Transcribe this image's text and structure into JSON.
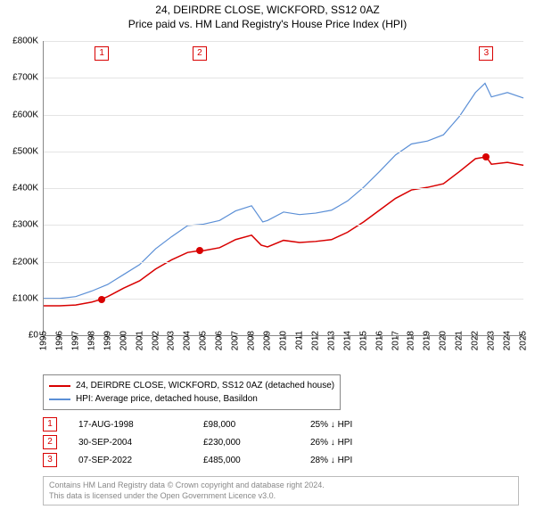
{
  "title": {
    "line1": "24, DEIRDRE CLOSE, WICKFORD, SS12 0AZ",
    "line2": "Price paid vs. HM Land Registry's House Price Index (HPI)",
    "fontsize": 12
  },
  "chart": {
    "type": "line",
    "background_color": "#ffffff",
    "grid_color": "#e4e4e4",
    "axis_color": "#888888",
    "ylim": [
      0,
      800000
    ],
    "ytick_step": 100000,
    "yticklabels": [
      "£0",
      "£100K",
      "£200K",
      "£300K",
      "£400K",
      "£500K",
      "£600K",
      "£700K",
      "£800K"
    ],
    "xlim": [
      1995,
      2025
    ],
    "xticks": [
      1995,
      1996,
      1997,
      1998,
      1999,
      2000,
      2001,
      2002,
      2003,
      2004,
      2005,
      2006,
      2007,
      2008,
      2009,
      2010,
      2011,
      2012,
      2013,
      2014,
      2015,
      2016,
      2017,
      2018,
      2019,
      2020,
      2021,
      2022,
      2023,
      2024,
      2025
    ],
    "series": {
      "price_paid": {
        "label": "24, DEIRDRE CLOSE, WICKFORD, SS12 0AZ (detached house)",
        "color": "#d80000",
        "line_width": 1.5,
        "data": [
          [
            1995,
            80000
          ],
          [
            1996,
            80000
          ],
          [
            1997,
            82000
          ],
          [
            1998,
            90000
          ],
          [
            1998.63,
            98000
          ],
          [
            1999,
            105000
          ],
          [
            2000,
            128000
          ],
          [
            2001,
            148000
          ],
          [
            2002,
            180000
          ],
          [
            2003,
            205000
          ],
          [
            2004,
            225000
          ],
          [
            2004.75,
            230000
          ],
          [
            2005,
            230000
          ],
          [
            2006,
            238000
          ],
          [
            2007,
            260000
          ],
          [
            2008,
            272000
          ],
          [
            2008.6,
            245000
          ],
          [
            2009,
            240000
          ],
          [
            2010,
            258000
          ],
          [
            2011,
            252000
          ],
          [
            2012,
            255000
          ],
          [
            2013,
            260000
          ],
          [
            2014,
            280000
          ],
          [
            2015,
            308000
          ],
          [
            2016,
            340000
          ],
          [
            2017,
            372000
          ],
          [
            2018,
            395000
          ],
          [
            2019,
            402000
          ],
          [
            2020,
            412000
          ],
          [
            2021,
            445000
          ],
          [
            2022,
            480000
          ],
          [
            2022.68,
            485000
          ],
          [
            2023,
            465000
          ],
          [
            2024,
            470000
          ],
          [
            2025,
            462000
          ]
        ]
      },
      "hpi": {
        "label": "HPI: Average price, detached house, Basildon",
        "color": "#5b8fd6",
        "line_width": 1.2,
        "data": [
          [
            1995,
            100000
          ],
          [
            1996,
            100000
          ],
          [
            1997,
            105000
          ],
          [
            1998,
            120000
          ],
          [
            1999,
            138000
          ],
          [
            2000,
            165000
          ],
          [
            2001,
            192000
          ],
          [
            2002,
            235000
          ],
          [
            2003,
            268000
          ],
          [
            2004,
            298000
          ],
          [
            2005,
            302000
          ],
          [
            2006,
            312000
          ],
          [
            2007,
            338000
          ],
          [
            2008,
            352000
          ],
          [
            2008.7,
            308000
          ],
          [
            2009,
            312000
          ],
          [
            2010,
            335000
          ],
          [
            2011,
            328000
          ],
          [
            2012,
            332000
          ],
          [
            2013,
            340000
          ],
          [
            2014,
            365000
          ],
          [
            2015,
            402000
          ],
          [
            2016,
            445000
          ],
          [
            2017,
            490000
          ],
          [
            2018,
            520000
          ],
          [
            2019,
            528000
          ],
          [
            2020,
            545000
          ],
          [
            2021,
            595000
          ],
          [
            2022,
            660000
          ],
          [
            2022.6,
            685000
          ],
          [
            2023,
            648000
          ],
          [
            2024,
            660000
          ],
          [
            2025,
            645000
          ]
        ]
      }
    },
    "sale_markers": [
      {
        "n": "1",
        "x": 1998.63,
        "y": 98000,
        "box_y_top": true
      },
      {
        "n": "2",
        "x": 2004.75,
        "y": 230000,
        "box_y_top": true
      },
      {
        "n": "3",
        "x": 2022.68,
        "y": 485000,
        "box_y_top": true
      }
    ],
    "marker_color": "#d80000",
    "marker_dot_radius": 4
  },
  "legend": {
    "items": [
      {
        "color": "#d80000",
        "label": "24, DEIRDRE CLOSE, WICKFORD, SS12 0AZ (detached house)"
      },
      {
        "color": "#5b8fd6",
        "label": "HPI: Average price, detached house, Basildon"
      }
    ]
  },
  "sales_table": {
    "rows": [
      {
        "n": "1",
        "date": "17-AUG-1998",
        "price": "£98,000",
        "delta": "25% ↓ HPI"
      },
      {
        "n": "2",
        "date": "30-SEP-2004",
        "price": "£230,000",
        "delta": "26% ↓ HPI"
      },
      {
        "n": "3",
        "date": "07-SEP-2022",
        "price": "£485,000",
        "delta": "28% ↓ HPI"
      }
    ],
    "box_color": "#d80000"
  },
  "footer": {
    "line1": "Contains HM Land Registry data © Crown copyright and database right 2024.",
    "line2": "This data is licensed under the Open Government Licence v3.0.",
    "color": "#888888"
  }
}
